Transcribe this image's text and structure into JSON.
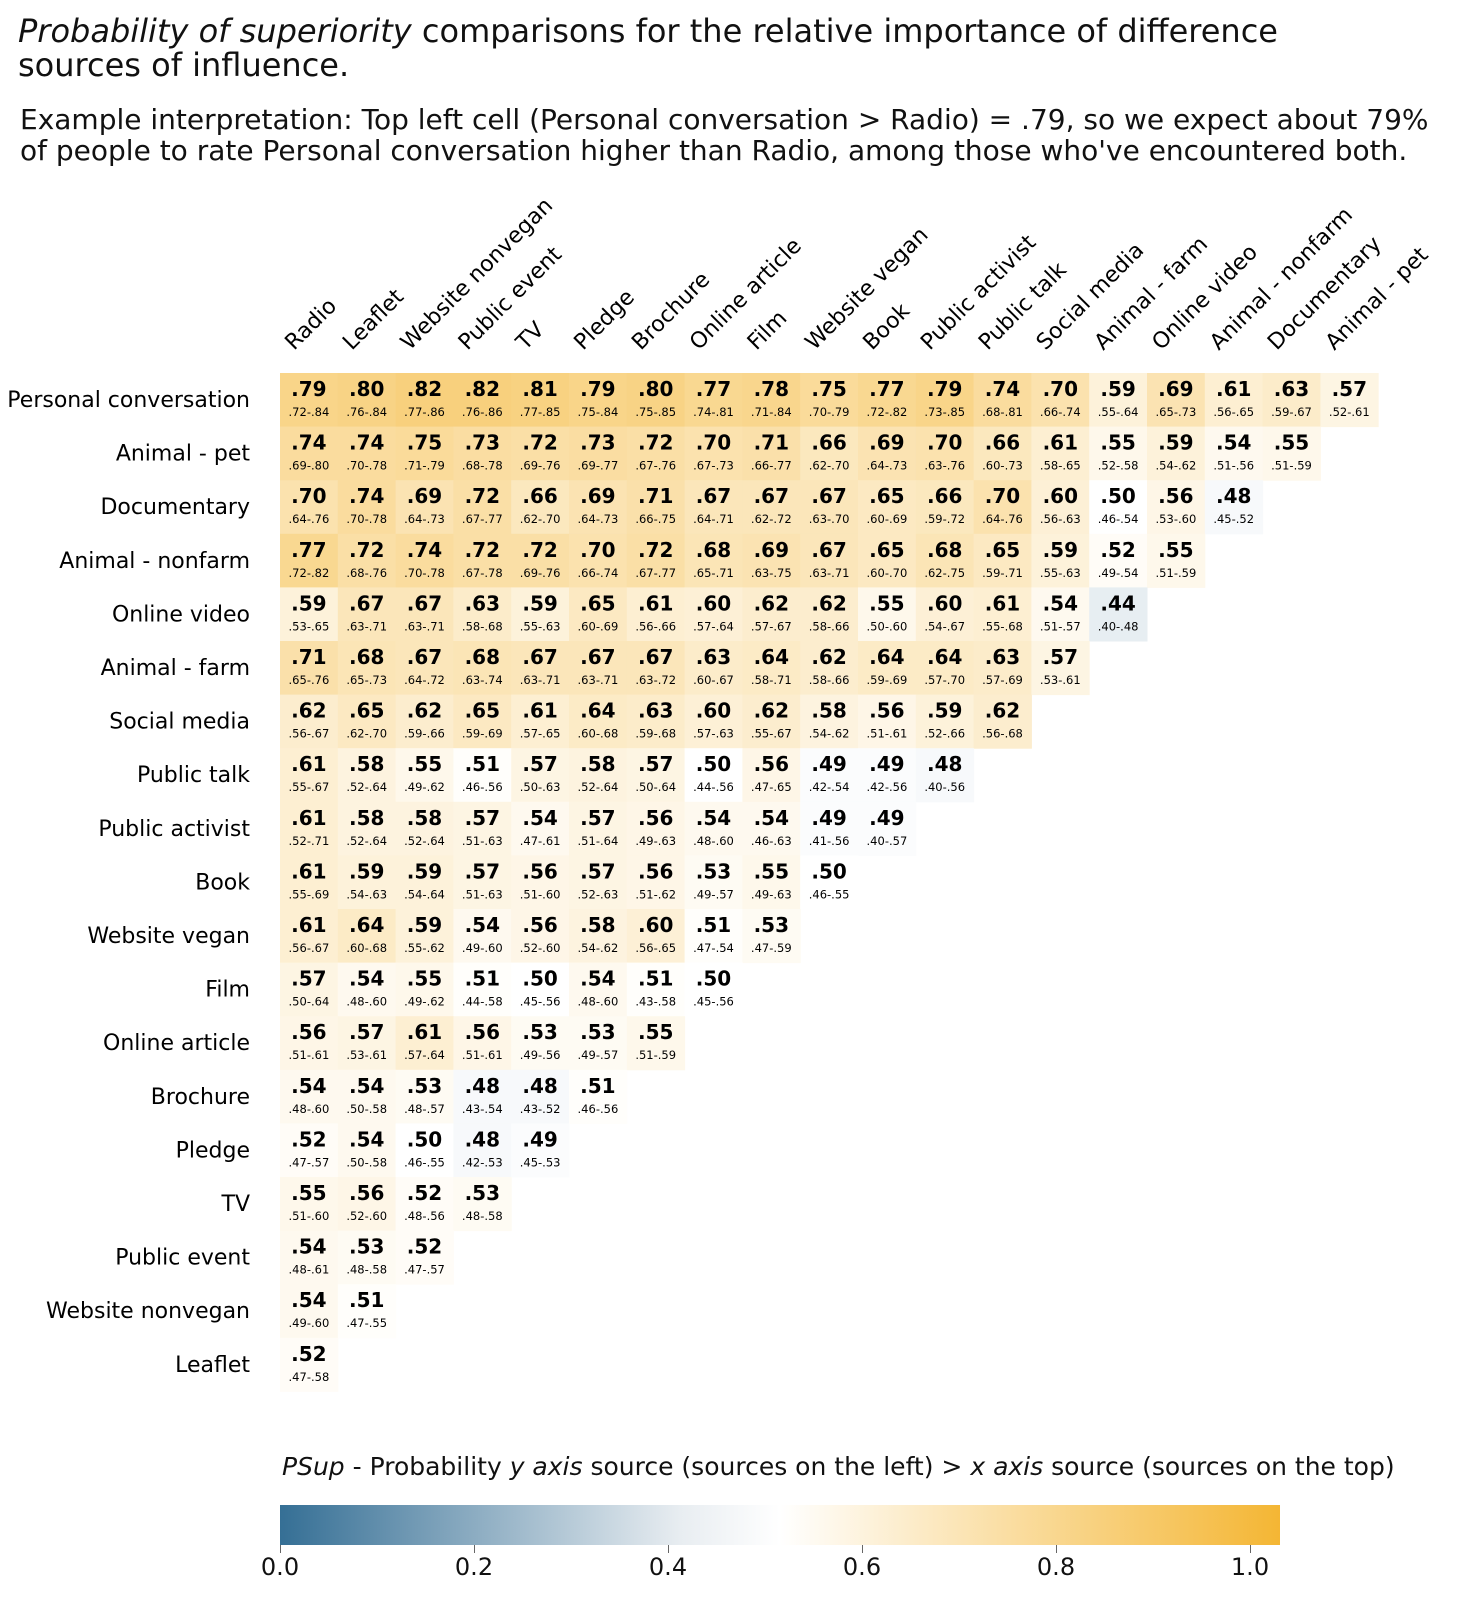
{
  "title": {
    "italic_part": "Probability of superiority",
    "rest_line1": " comparisons for the relative importance of difference",
    "line2": "sources of influence."
  },
  "subtitle": {
    "line1": "Example interpretation: Top left cell (Personal conversation > Radio) = .79, so we expect about 79%",
    "line2": "of people to rate Personal conversation higher than Radio, among those who've encountered both."
  },
  "legend": {
    "psup": "PSup",
    "text1": " - Probability ",
    "yaxis": "y axis",
    "text2": " source (sources on the left) > ",
    "xaxis": "x axis",
    "text3": " source (sources on the top)",
    "ticks": [
      "0.0",
      "0.2",
      "0.4",
      "0.6",
      "0.8",
      "1.0"
    ],
    "colors": {
      "low": "#356f95",
      "mid": "#ffffff",
      "high": "#f4b634"
    }
  },
  "chart_data": {
    "type": "heatmap",
    "columns": [
      "Radio",
      "Leaflet",
      "Website nonvegan",
      "Public event",
      "TV",
      "Pledge",
      "Brochure",
      "Online article",
      "Film",
      "Website vegan",
      "Book",
      "Public activist",
      "Public talk",
      "Social media",
      "Animal - farm",
      "Online video",
      "Animal - nonfarm",
      "Documentary",
      "Animal - pet"
    ],
    "rows": [
      {
        "label": "Personal conversation",
        "values": [
          ".79",
          ".80",
          ".82",
          ".82",
          ".81",
          ".79",
          ".80",
          ".77",
          ".78",
          ".75",
          ".77",
          ".79",
          ".74",
          ".70",
          ".59",
          ".69",
          ".61",
          ".63",
          ".57"
        ],
        "ci": [
          ".72-.84",
          ".76-.84",
          ".77-.86",
          ".76-.86",
          ".77-.85",
          ".75-.84",
          ".75-.85",
          ".74-.81",
          ".71-.84",
          ".70-.79",
          ".72-.82",
          ".73-.85",
          ".68-.81",
          ".66-.74",
          ".55-.64",
          ".65-.73",
          ".56-.65",
          ".59-.67",
          ".52-.61"
        ]
      },
      {
        "label": "Animal - pet",
        "values": [
          ".74",
          ".74",
          ".75",
          ".73",
          ".72",
          ".73",
          ".72",
          ".70",
          ".71",
          ".66",
          ".69",
          ".70",
          ".66",
          ".61",
          ".55",
          ".59",
          ".54",
          ".55"
        ],
        "ci": [
          ".69-.80",
          ".70-.78",
          ".71-.79",
          ".68-.78",
          ".69-.76",
          ".69-.77",
          ".67-.76",
          ".67-.73",
          ".66-.77",
          ".62-.70",
          ".64-.73",
          ".63-.76",
          ".60-.73",
          ".58-.65",
          ".52-.58",
          ".54-.62",
          ".51-.56",
          ".51-.59"
        ]
      },
      {
        "label": "Documentary",
        "values": [
          ".70",
          ".74",
          ".69",
          ".72",
          ".66",
          ".69",
          ".71",
          ".67",
          ".67",
          ".67",
          ".65",
          ".66",
          ".70",
          ".60",
          ".50",
          ".56",
          ".48"
        ],
        "ci": [
          ".64-.76",
          ".70-.78",
          ".64-.73",
          ".67-.77",
          ".62-.70",
          ".64-.73",
          ".66-.75",
          ".64-.71",
          ".62-.72",
          ".63-.70",
          ".60-.69",
          ".59-.72",
          ".64-.76",
          ".56-.63",
          ".46-.54",
          ".53-.60",
          ".45-.52"
        ]
      },
      {
        "label": "Animal - nonfarm",
        "values": [
          ".77",
          ".72",
          ".74",
          ".72",
          ".72",
          ".70",
          ".72",
          ".68",
          ".69",
          ".67",
          ".65",
          ".68",
          ".65",
          ".59",
          ".52",
          ".55"
        ],
        "ci": [
          ".72-.82",
          ".68-.76",
          ".70-.78",
          ".67-.78",
          ".69-.76",
          ".66-.74",
          ".67-.77",
          ".65-.71",
          ".63-.75",
          ".63-.71",
          ".60-.70",
          ".62-.75",
          ".59-.71",
          ".55-.63",
          ".49-.54",
          ".51-.59"
        ]
      },
      {
        "label": "Online video",
        "values": [
          ".59",
          ".67",
          ".67",
          ".63",
          ".59",
          ".65",
          ".61",
          ".60",
          ".62",
          ".62",
          ".55",
          ".60",
          ".61",
          ".54",
          ".44"
        ],
        "ci": [
          ".53-.65",
          ".63-.71",
          ".63-.71",
          ".58-.68",
          ".55-.63",
          ".60-.69",
          ".56-.66",
          ".57-.64",
          ".57-.67",
          ".58-.66",
          ".50-.60",
          ".54-.67",
          ".55-.68",
          ".51-.57",
          ".40-.48"
        ]
      },
      {
        "label": "Animal - farm",
        "values": [
          ".71",
          ".68",
          ".67",
          ".68",
          ".67",
          ".67",
          ".67",
          ".63",
          ".64",
          ".62",
          ".64",
          ".64",
          ".63",
          ".57"
        ],
        "ci": [
          ".65-.76",
          ".65-.73",
          ".64-.72",
          ".63-.74",
          ".63-.71",
          ".63-.71",
          ".63-.72",
          ".60-.67",
          ".58-.71",
          ".58-.66",
          ".59-.69",
          ".57-.70",
          ".57-.69",
          ".53-.61"
        ]
      },
      {
        "label": "Social media",
        "values": [
          ".62",
          ".65",
          ".62",
          ".65",
          ".61",
          ".64",
          ".63",
          ".60",
          ".62",
          ".58",
          ".56",
          ".59",
          ".62"
        ],
        "ci": [
          ".56-.67",
          ".62-.70",
          ".59-.66",
          ".59-.69",
          ".57-.65",
          ".60-.68",
          ".59-.68",
          ".57-.63",
          ".55-.67",
          ".54-.62",
          ".51-.61",
          ".52-.66",
          ".56-.68"
        ]
      },
      {
        "label": "Public talk",
        "values": [
          ".61",
          ".58",
          ".55",
          ".51",
          ".57",
          ".58",
          ".57",
          ".50",
          ".56",
          ".49",
          ".49",
          ".48"
        ],
        "ci": [
          ".55-.67",
          ".52-.64",
          ".49-.62",
          ".46-.56",
          ".50-.63",
          ".52-.64",
          ".50-.64",
          ".44-.56",
          ".47-.65",
          ".42-.54",
          ".42-.56",
          ".40-.56"
        ]
      },
      {
        "label": "Public activist",
        "values": [
          ".61",
          ".58",
          ".58",
          ".57",
          ".54",
          ".57",
          ".56",
          ".54",
          ".54",
          ".49",
          ".49"
        ],
        "ci": [
          ".52-.71",
          ".52-.64",
          ".52-.64",
          ".51-.63",
          ".47-.61",
          ".51-.64",
          ".49-.63",
          ".48-.60",
          ".46-.63",
          ".41-.56",
          ".40-.57"
        ]
      },
      {
        "label": "Book",
        "values": [
          ".61",
          ".59",
          ".59",
          ".57",
          ".56",
          ".57",
          ".56",
          ".53",
          ".55",
          ".50"
        ],
        "ci": [
          ".55-.69",
          ".54-.63",
          ".54-.64",
          ".51-.63",
          ".51-.60",
          ".52-.63",
          ".51-.62",
          ".49-.57",
          ".49-.63",
          ".46-.55"
        ]
      },
      {
        "label": "Website vegan",
        "values": [
          ".61",
          ".64",
          ".59",
          ".54",
          ".56",
          ".58",
          ".60",
          ".51",
          ".53"
        ],
        "ci": [
          ".56-.67",
          ".60-.68",
          ".55-.62",
          ".49-.60",
          ".52-.60",
          ".54-.62",
          ".56-.65",
          ".47-.54",
          ".47-.59"
        ]
      },
      {
        "label": "Film",
        "values": [
          ".57",
          ".54",
          ".55",
          ".51",
          ".50",
          ".54",
          ".51",
          ".50"
        ],
        "ci": [
          ".50-.64",
          ".48-.60",
          ".49-.62",
          ".44-.58",
          ".45-.56",
          ".48-.60",
          ".43-.58",
          ".45-.56"
        ]
      },
      {
        "label": "Online article",
        "values": [
          ".56",
          ".57",
          ".61",
          ".56",
          ".53",
          ".53",
          ".55"
        ],
        "ci": [
          ".51-.61",
          ".53-.61",
          ".57-.64",
          ".51-.61",
          ".49-.56",
          ".49-.57",
          ".51-.59"
        ]
      },
      {
        "label": "Brochure",
        "values": [
          ".54",
          ".54",
          ".53",
          ".48",
          ".48",
          ".51"
        ],
        "ci": [
          ".48-.60",
          ".50-.58",
          ".48-.57",
          ".43-.54",
          ".43-.52",
          ".46-.56"
        ]
      },
      {
        "label": "Pledge",
        "values": [
          ".52",
          ".54",
          ".50",
          ".48",
          ".49"
        ],
        "ci": [
          ".47-.57",
          ".50-.58",
          ".46-.55",
          ".42-.53",
          ".45-.53"
        ]
      },
      {
        "label": "TV",
        "values": [
          ".55",
          ".56",
          ".52",
          ".53"
        ],
        "ci": [
          ".51-.60",
          ".52-.60",
          ".48-.56",
          ".48-.58"
        ]
      },
      {
        "label": "Public event",
        "values": [
          ".54",
          ".53",
          ".52"
        ],
        "ci": [
          ".48-.61",
          ".48-.58",
          ".47-.57"
        ]
      },
      {
        "label": "Website nonvegan",
        "values": [
          ".54",
          ".51"
        ],
        "ci": [
          ".49-.60",
          ".47-.55"
        ]
      },
      {
        "label": "Leaflet",
        "values": [
          ".52"
        ],
        "ci": [
          ".47-.58"
        ]
      }
    ],
    "scale_range": [
      0,
      1
    ],
    "legend_position": "bottom"
  }
}
